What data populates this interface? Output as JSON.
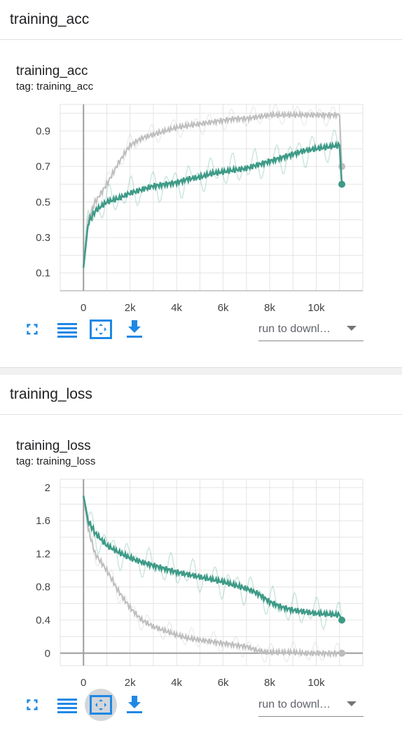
{
  "sections": [
    {
      "header": "training_acc",
      "card_title": "training_acc",
      "tag": "tag: training_acc",
      "run_select": "run to downl…",
      "chart_data": {
        "type": "line",
        "x_ticks": [
          "0",
          "2k",
          "4k",
          "6k",
          "8k",
          "10k"
        ],
        "y_ticks": [
          "0.1",
          "0.3",
          "0.5",
          "0.7",
          "0.9"
        ],
        "xlim": [
          -1000,
          12000
        ],
        "ylim": [
          0,
          1.05
        ],
        "series": [
          {
            "color": "#3d9a86",
            "x": [
              0,
              200,
              500,
              1000,
              1500,
              2000,
              2500,
              3000,
              3500,
              4000,
              4500,
              5000,
              5500,
              6000,
              6500,
              7000,
              7500,
              8000,
              8500,
              9000,
              9500,
              10000,
              10500,
              11000,
              11100
            ],
            "y": [
              0.13,
              0.38,
              0.45,
              0.5,
              0.52,
              0.55,
              0.57,
              0.59,
              0.6,
              0.61,
              0.63,
              0.64,
              0.66,
              0.67,
              0.68,
              0.69,
              0.71,
              0.73,
              0.75,
              0.77,
              0.79,
              0.8,
              0.81,
              0.82,
              0.6
            ]
          },
          {
            "color": "#bdbdbd",
            "x": [
              0,
              200,
              500,
              1000,
              1500,
              2000,
              2500,
              3000,
              3500,
              4000,
              4500,
              5000,
              5500,
              6000,
              6500,
              7000,
              7500,
              8000,
              8500,
              9000,
              9500,
              10000,
              10500,
              11000,
              11100
            ],
            "y": [
              0.13,
              0.4,
              0.5,
              0.6,
              0.72,
              0.82,
              0.86,
              0.88,
              0.9,
              0.92,
              0.93,
              0.94,
              0.95,
              0.96,
              0.97,
              0.97,
              0.98,
              0.99,
              0.99,
              0.99,
              0.99,
              0.99,
              0.99,
              0.99,
              0.7
            ]
          }
        ]
      }
    },
    {
      "header": "training_loss",
      "card_title": "training_loss",
      "tag": "tag: training_loss",
      "run_select": "run to downl…",
      "chart_data": {
        "type": "line",
        "x_ticks": [
          "0",
          "2k",
          "4k",
          "6k",
          "8k",
          "10k"
        ],
        "y_ticks": [
          "0",
          "0.4",
          "0.8",
          "1.2",
          "1.6",
          "2"
        ],
        "xlim": [
          -1000,
          12000
        ],
        "ylim": [
          -0.15,
          2.1
        ],
        "series": [
          {
            "color": "#3d9a86",
            "x": [
              0,
              200,
              500,
              1000,
              1500,
              2000,
              2500,
              3000,
              3500,
              4000,
              4500,
              5000,
              5500,
              6000,
              6500,
              7000,
              7500,
              8000,
              8500,
              9000,
              9500,
              10000,
              10500,
              11000,
              11100
            ],
            "y": [
              1.9,
              1.6,
              1.45,
              1.3,
              1.22,
              1.15,
              1.1,
              1.06,
              1.02,
              0.98,
              0.95,
              0.92,
              0.89,
              0.86,
              0.82,
              0.78,
              0.72,
              0.62,
              0.56,
              0.52,
              0.5,
              0.48,
              0.47,
              0.46,
              0.4
            ]
          },
          {
            "color": "#bdbdbd",
            "x": [
              0,
              200,
              500,
              1000,
              1500,
              2000,
              2500,
              3000,
              3500,
              4000,
              4500,
              5000,
              5500,
              6000,
              6500,
              7000,
              7500,
              8000,
              8500,
              9000,
              9500,
              10000,
              10500,
              11000,
              11100
            ],
            "y": [
              1.9,
              1.5,
              1.2,
              1.0,
              0.75,
              0.55,
              0.4,
              0.32,
              0.27,
              0.22,
              0.18,
              0.16,
              0.14,
              0.12,
              0.1,
              0.08,
              0.03,
              0.01,
              0.01,
              0.01,
              0.0,
              0.0,
              0.0,
              0.0,
              0.0
            ]
          }
        ]
      }
    }
  ]
}
